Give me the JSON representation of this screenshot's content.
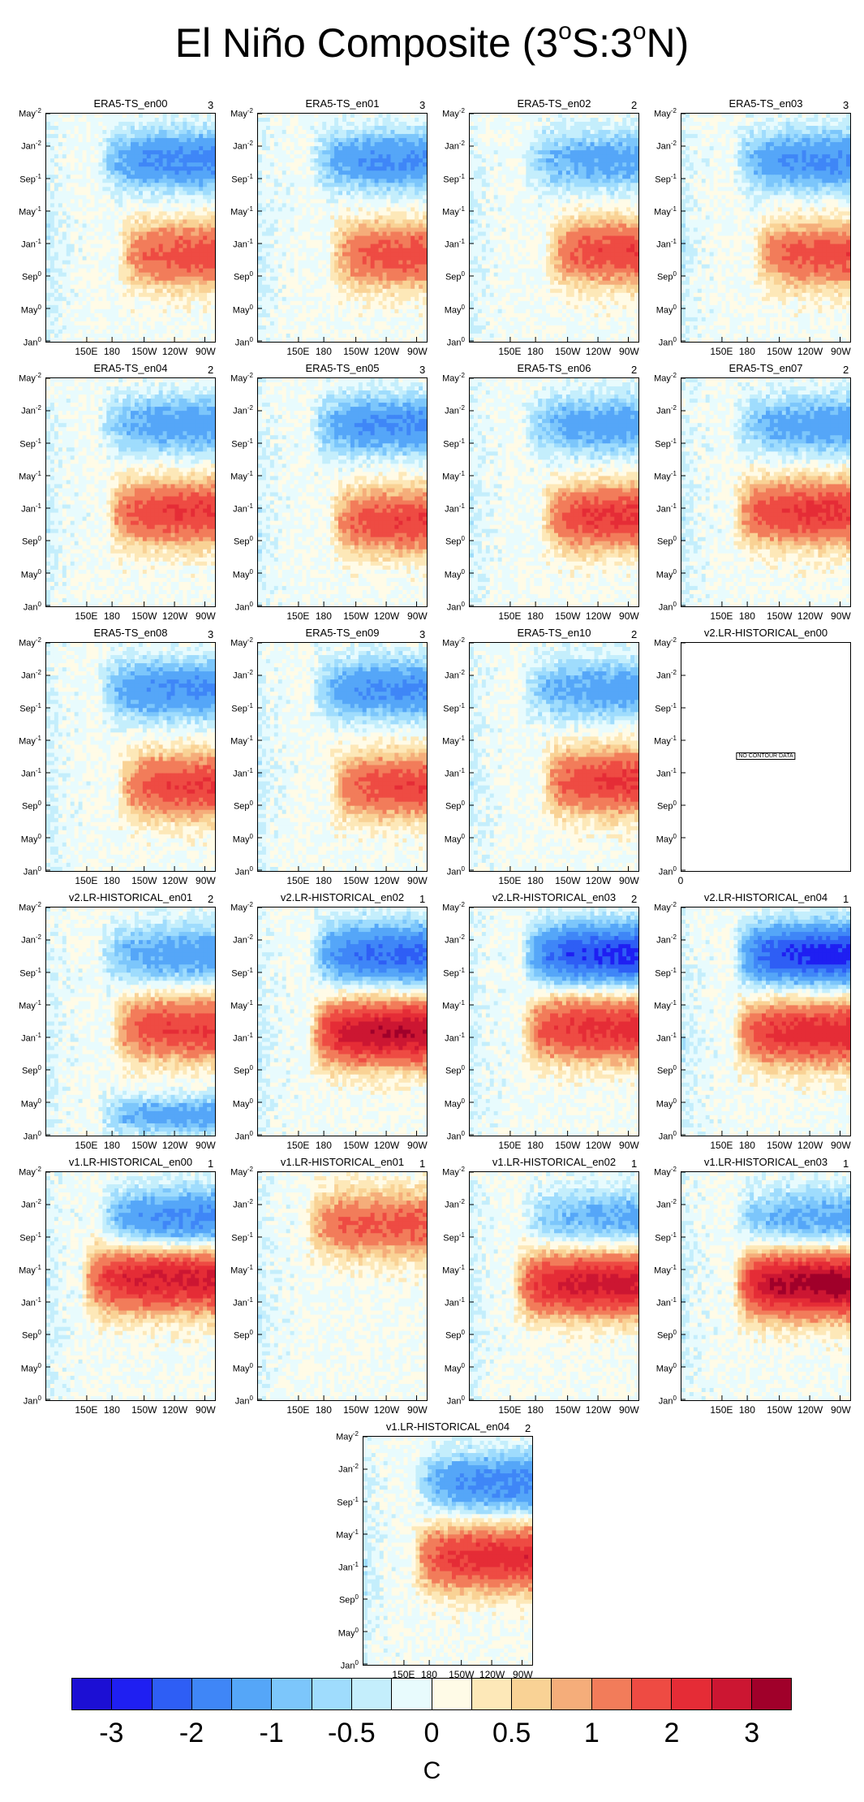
{
  "title": {
    "text": "El Niño Composite (3",
    "s_deg": "o",
    "mid": "S:3",
    "n_deg": "o",
    "end": "N)"
  },
  "chart_data": {
    "type": "heatmap",
    "x_tick_labels": [
      "150E",
      "180",
      "150W",
      "120W",
      "90W"
    ],
    "y_tick_labels": [
      {
        "month": "May",
        "year": "-2"
      },
      {
        "month": "Jan",
        "year": "-2"
      },
      {
        "month": "Sep",
        "year": "-1"
      },
      {
        "month": "May",
        "year": "-1"
      },
      {
        "month": "Jan",
        "year": "-1"
      },
      {
        "month": "Sep",
        "year": "0"
      },
      {
        "month": "May",
        "year": "0"
      },
      {
        "month": "Jan",
        "year": "0"
      }
    ],
    "panels": [
      {
        "name": "ERA5-TS_en00",
        "count": "3",
        "pattern": {
          "warm": 1.8,
          "cold": -1.7,
          "warm_top": 0.45,
          "west_edge": 0.42
        }
      },
      {
        "name": "ERA5-TS_en01",
        "count": "3",
        "pattern": {
          "warm": 1.8,
          "cold": -1.6,
          "warm_top": 0.45,
          "west_edge": 0.42
        }
      },
      {
        "name": "ERA5-TS_en02",
        "count": "2",
        "pattern": {
          "warm": 1.9,
          "cold": -1.2,
          "warm_top": 0.44,
          "west_edge": 0.45
        }
      },
      {
        "name": "ERA5-TS_en03",
        "count": "3",
        "pattern": {
          "warm": 1.8,
          "cold": -1.6,
          "warm_top": 0.45,
          "west_edge": 0.42
        }
      },
      {
        "name": "ERA5-TS_en04",
        "count": "2",
        "pattern": {
          "warm": 2.0,
          "cold": -1.3,
          "warm_top": 0.42,
          "west_edge": 0.35
        }
      },
      {
        "name": "ERA5-TS_en05",
        "count": "3",
        "pattern": {
          "warm": 1.9,
          "cold": -1.6,
          "warm_top": 0.46,
          "west_edge": 0.42
        }
      },
      {
        "name": "ERA5-TS_en06",
        "count": "2",
        "pattern": {
          "warm": 2.1,
          "cold": -1.3,
          "warm_top": 0.44,
          "west_edge": 0.42
        }
      },
      {
        "name": "ERA5-TS_en07",
        "count": "2",
        "pattern": {
          "warm": 2.1,
          "cold": -1.3,
          "warm_top": 0.42,
          "west_edge": 0.3
        }
      },
      {
        "name": "ERA5-TS_en08",
        "count": "3",
        "pattern": {
          "warm": 2.0,
          "cold": -1.6,
          "warm_top": 0.46,
          "west_edge": 0.42
        }
      },
      {
        "name": "ERA5-TS_en09",
        "count": "3",
        "pattern": {
          "warm": 1.9,
          "cold": -1.6,
          "warm_top": 0.46,
          "west_edge": 0.42
        }
      },
      {
        "name": "ERA5-TS_en10",
        "count": "2",
        "pattern": {
          "warm": 2.1,
          "cold": -1.3,
          "warm_top": 0.44,
          "west_edge": 0.42
        }
      },
      {
        "name": "v2.LR-HISTORICAL_en00",
        "count": "",
        "nodata": true,
        "nodata_label": "NO CONTOUR DATA",
        "x_zero_label": "0"
      },
      {
        "name": "v2.LR-HISTORICAL_en01",
        "count": "2",
        "pattern": {
          "warm": 2.0,
          "cold": -1.3,
          "warm_top": 0.36,
          "west_edge": 0.38,
          "late_cold": -1.3
        }
      },
      {
        "name": "v2.LR-HISTORICAL_en02",
        "count": "1",
        "pattern": {
          "warm": 3.0,
          "cold": -2.2,
          "warm_top": 0.38,
          "west_edge": 0.3
        }
      },
      {
        "name": "v2.LR-HISTORICAL_en03",
        "count": "2",
        "pattern": {
          "warm": 2.2,
          "cold": -2.7,
          "warm_top": 0.36,
          "west_edge": 0.3
        }
      },
      {
        "name": "v2.LR-HISTORICAL_en04",
        "count": "1",
        "pattern": {
          "warm": 2.3,
          "cold": -2.8,
          "warm_top": 0.38,
          "west_edge": 0.3
        }
      },
      {
        "name": "v1.LR-HISTORICAL_en00",
        "count": "1",
        "pattern": {
          "warm": 2.6,
          "cold": -1.7,
          "warm_top": 0.3,
          "west_edge": 0.2
        }
      },
      {
        "name": "v1.LR-HISTORICAL_en01",
        "count": "1",
        "pattern": {
          "warm": 2.0,
          "cold": -0.4,
          "warm_top": 0.05,
          "west_edge": 0.28
        }
      },
      {
        "name": "v1.LR-HISTORICAL_en02",
        "count": "1",
        "pattern": {
          "warm": 2.7,
          "cold": -1.1,
          "warm_top": 0.32,
          "west_edge": 0.25
        }
      },
      {
        "name": "v1.LR-HISTORICAL_en03",
        "count": "1",
        "pattern": {
          "warm": 3.3,
          "cold": -1.2,
          "warm_top": 0.32,
          "west_edge": 0.3
        }
      },
      {
        "name": "v1.LR-HISTORICAL_en04",
        "count": "2",
        "pattern": {
          "warm": 2.3,
          "cold": -1.7,
          "warm_top": 0.36,
          "west_edge": 0.28
        }
      }
    ],
    "colorbar": {
      "colors": [
        "#1c0fd4",
        "#1f1ff2",
        "#2e5ef5",
        "#3f86f7",
        "#55a6f8",
        "#7cc6fb",
        "#9fdcfd",
        "#c4eefc",
        "#e8fbfd",
        "#fffbe7",
        "#fde8b8",
        "#f9d295",
        "#f5ad7a",
        "#f27c5a",
        "#ee4b43",
        "#e52c36",
        "#cc1632",
        "#a0002a"
      ],
      "labels": [
        "-3",
        "-2",
        "-1",
        "-0.5",
        "0",
        "0.5",
        "1",
        "2",
        "3"
      ],
      "units": "C"
    }
  }
}
